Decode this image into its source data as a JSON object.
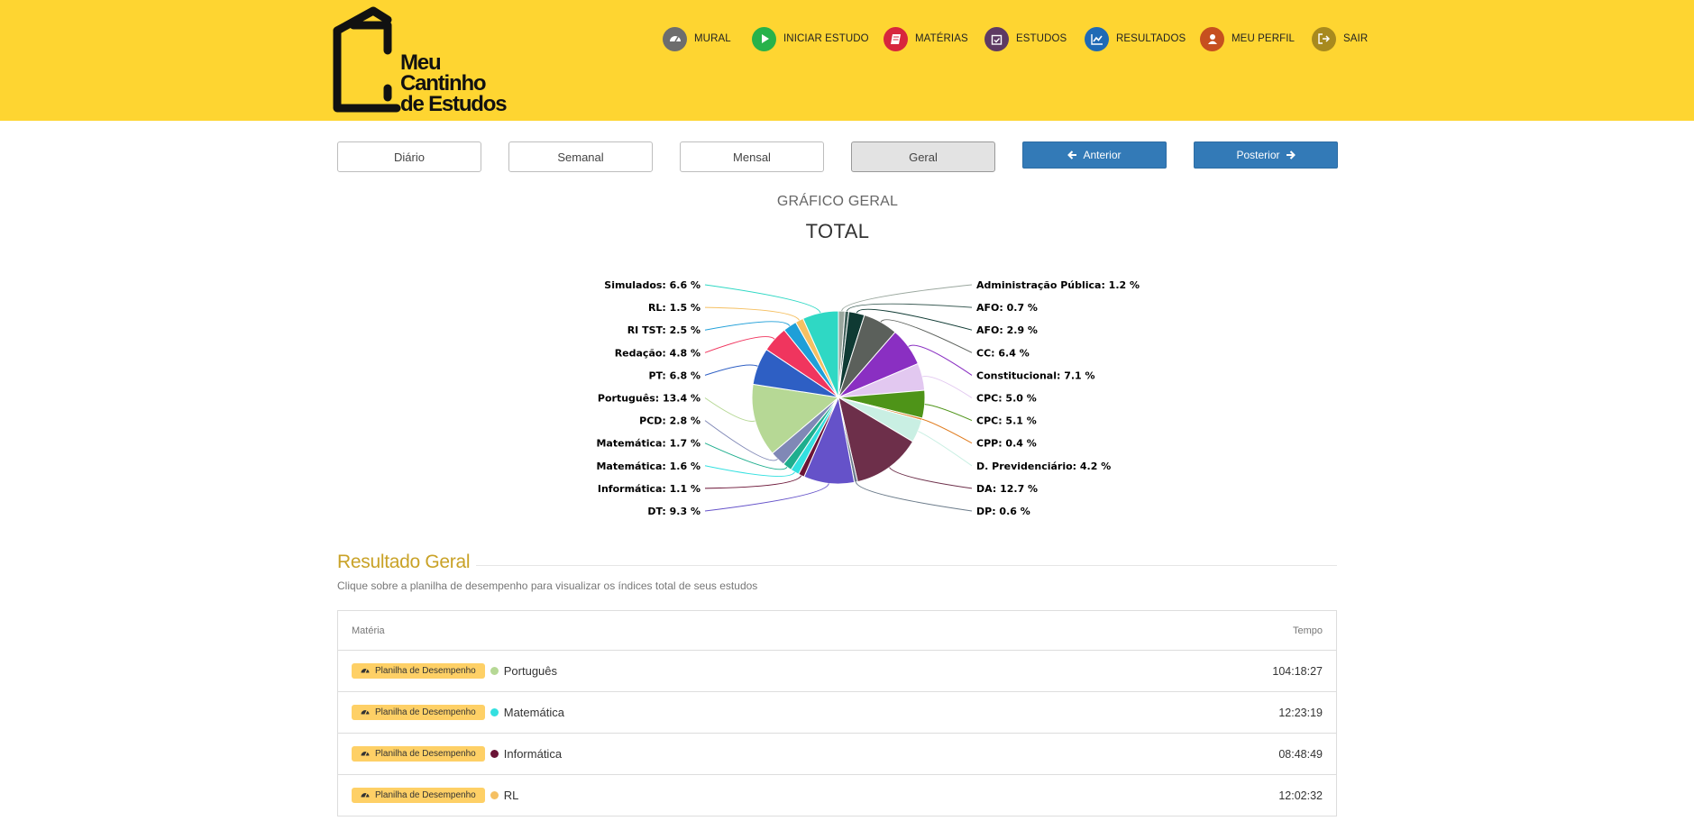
{
  "brand": {
    "line1": "Meu",
    "line2": "Cantinho",
    "line3": "de Estudos"
  },
  "nav": [
    {
      "id": "mural",
      "label": "MURAL",
      "color": "#6d6d6d",
      "icon": "dashboard-icon"
    },
    {
      "id": "iniciar",
      "label": "INICIAR ESTUDO",
      "color": "#27b24a",
      "icon": "play-icon"
    },
    {
      "id": "materias",
      "label": "MATÉRIAS",
      "color": "#d7263d",
      "icon": "book-icon"
    },
    {
      "id": "estudos",
      "label": "ESTUDOS",
      "color": "#5e3a63",
      "icon": "calendar-check-icon"
    },
    {
      "id": "resultados",
      "label": "RESULTADOS",
      "color": "#1f6ab5",
      "icon": "line-chart-icon"
    },
    {
      "id": "perfil",
      "label": "MEU PERFIL",
      "color": "#c6501f",
      "icon": "user-icon"
    },
    {
      "id": "sair",
      "label": "SAIR",
      "color": "#a88a1e",
      "icon": "sign-out-icon"
    }
  ],
  "period_buttons": [
    "Diário",
    "Semanal",
    "Mensal",
    "Geral"
  ],
  "active_period": "Geral",
  "prev_label": "Anterior",
  "next_label": "Posterior",
  "chart": {
    "subtitle": "GRÁFICO GERAL",
    "title": "TOTAL"
  },
  "chart_data": {
    "type": "pie",
    "title": "TOTAL",
    "slices": [
      {
        "name": "Administração Pública",
        "value": 1.2,
        "color": "#9aa79e"
      },
      {
        "name": "AFO",
        "value": 0.7,
        "color": "#3f5f58"
      },
      {
        "name": "AFO",
        "value": 2.9,
        "color": "#0f3a33"
      },
      {
        "name": "CC",
        "value": 6.4,
        "color": "#5b605b"
      },
      {
        "name": "Constitucional",
        "value": 7.1,
        "color": "#8a2fc2"
      },
      {
        "name": "CPC",
        "value": 5.0,
        "color": "#e2c8f0"
      },
      {
        "name": "CPC",
        "value": 5.1,
        "color": "#4e9418"
      },
      {
        "name": "CPP",
        "value": 0.4,
        "color": "#e07b1e"
      },
      {
        "name": "D. Previdenciário",
        "value": 4.2,
        "color": "#c9efe3"
      },
      {
        "name": "DA",
        "value": 12.7,
        "color": "#6d2f4a"
      },
      {
        "name": "DP",
        "value": 0.6,
        "color": "#6b7b8a"
      },
      {
        "name": "DT",
        "value": 9.3,
        "color": "#6552c9"
      },
      {
        "name": "Informática",
        "value": 1.1,
        "color": "#6b1436"
      },
      {
        "name": "Matemática",
        "value": 1.6,
        "color": "#33e0e0"
      },
      {
        "name": "Matemática",
        "value": 1.7,
        "color": "#1fae8e"
      },
      {
        "name": "PCD",
        "value": 2.8,
        "color": "#8088b6"
      },
      {
        "name": "Português",
        "value": 13.4,
        "color": "#b6d895"
      },
      {
        "name": "PT",
        "value": 6.8,
        "color": "#2e5fc4"
      },
      {
        "name": "Redação",
        "value": 4.8,
        "color": "#f0355e"
      },
      {
        "name": "RI TST",
        "value": 2.5,
        "color": "#1f9fd8"
      },
      {
        "name": "RL",
        "value": 1.5,
        "color": "#f5c063"
      },
      {
        "name": "Simulados",
        "value": 6.6,
        "color": "#2fd8c4"
      }
    ]
  },
  "results": {
    "title": "Resultado Geral",
    "description": "Clique sobre a planilha de desempenho para visualizar os índices total de seus estudos",
    "col_subject": "Matéria",
    "col_time": "Tempo",
    "badge_label": "Planilha de Desempenho",
    "rows": [
      {
        "subject": "Português",
        "time": "104:18:27",
        "color": "#b6d895"
      },
      {
        "subject": "Matemática",
        "time": "12:23:19",
        "color": "#33e0e0"
      },
      {
        "subject": "Informática",
        "time": "08:48:49",
        "color": "#6b1436"
      },
      {
        "subject": "RL",
        "time": "12:02:32",
        "color": "#f5c063"
      }
    ]
  }
}
